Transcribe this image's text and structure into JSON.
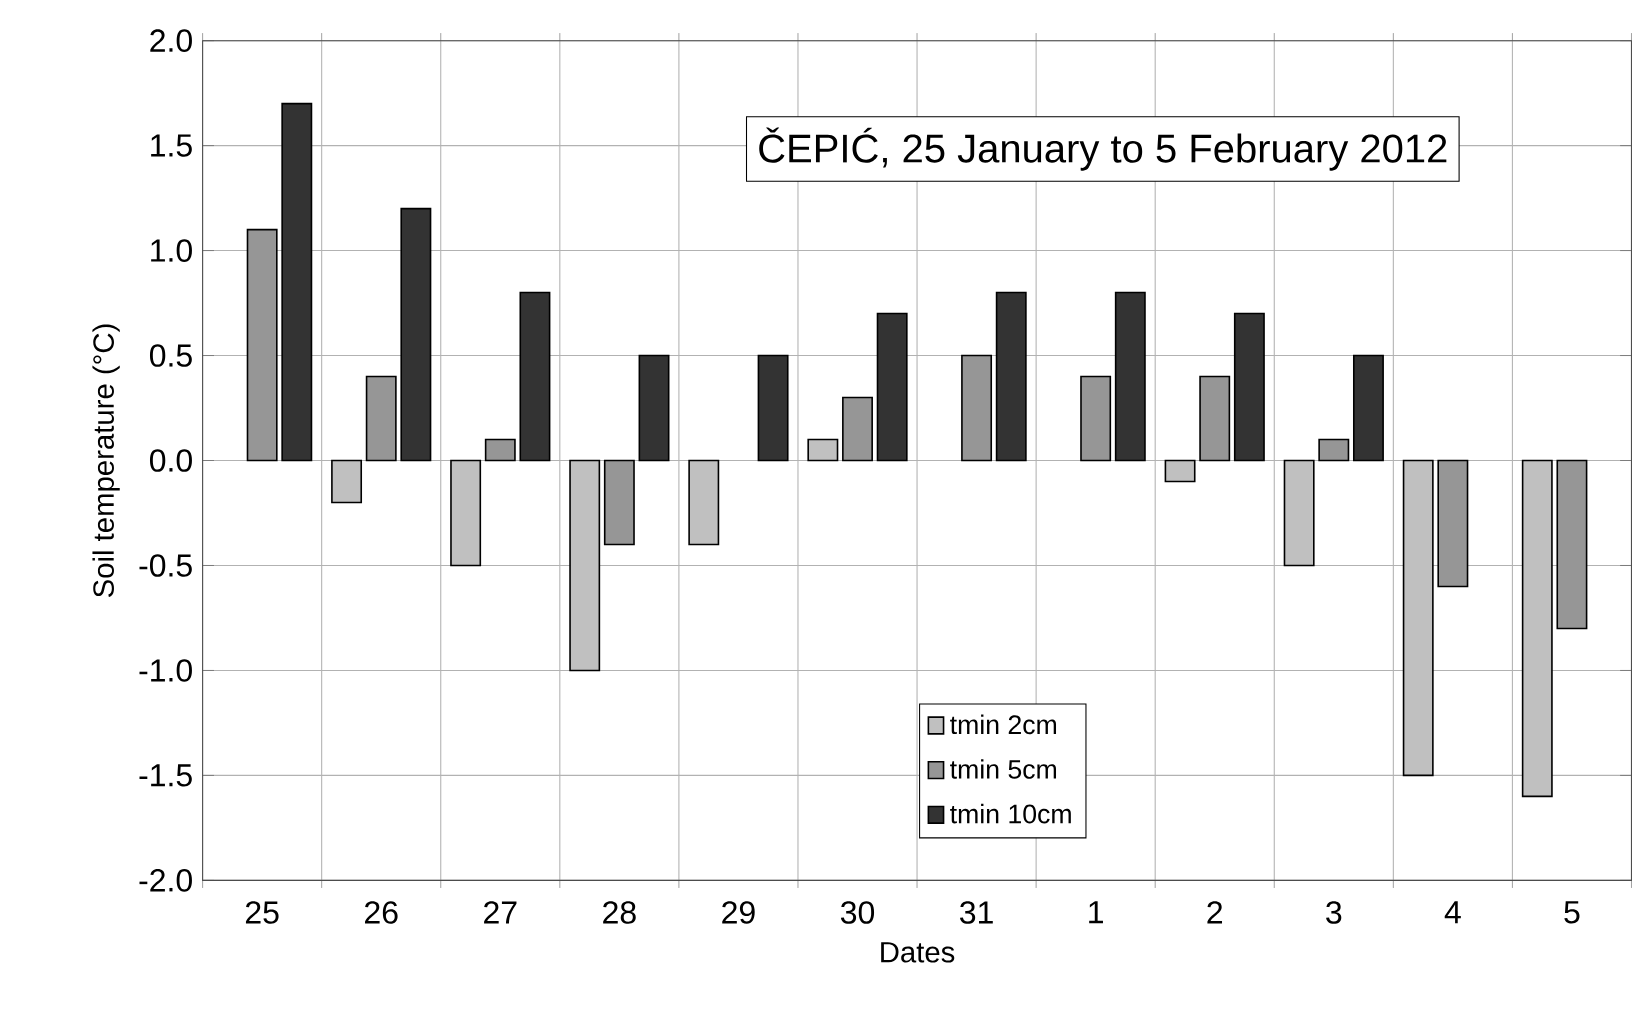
{
  "chart_data": {
    "type": "bar",
    "title": "ČEPIĆ, 25 January to 5 February 2012",
    "xlabel": "Dates",
    "ylabel": "Soil temperature (°C)",
    "categories": [
      "25",
      "26",
      "27",
      "28",
      "29",
      "30",
      "31",
      "1",
      "2",
      "3",
      "4",
      "5"
    ],
    "series": [
      {
        "name": "tmin 2cm",
        "color": "#c0c0c0",
        "values": [
          null,
          -0.2,
          -0.5,
          -1.0,
          -0.4,
          0.1,
          null,
          null,
          -0.1,
          -0.5,
          -1.5,
          -1.6
        ]
      },
      {
        "name": "tmin 5cm",
        "color": "#969696",
        "values": [
          1.1,
          0.4,
          0.1,
          -0.4,
          null,
          0.3,
          0.5,
          0.4,
          0.4,
          0.1,
          -0.6,
          -0.8
        ]
      },
      {
        "name": "tmin 10cm",
        "color": "#333333",
        "values": [
          1.7,
          1.2,
          0.8,
          0.5,
          0.5,
          0.7,
          0.8,
          0.8,
          0.7,
          0.5,
          null,
          null
        ]
      }
    ],
    "ylim": [
      -2.0,
      2.0
    ],
    "yticks": [
      {
        "value": -2.0,
        "label": "-2.0"
      },
      {
        "value": -1.5,
        "label": "-1.5"
      },
      {
        "value": -1.0,
        "label": "-1.0"
      },
      {
        "value": -0.5,
        "label": "-0.5"
      },
      {
        "value": 0.0,
        "label": "0.0"
      },
      {
        "value": 0.5,
        "label": "0.5"
      },
      {
        "value": 1.0,
        "label": "1.0"
      },
      {
        "value": 1.5,
        "label": "1.5"
      },
      {
        "value": 2.0,
        "label": "2.0"
      }
    ],
    "grid": true,
    "legend": "bottom"
  }
}
